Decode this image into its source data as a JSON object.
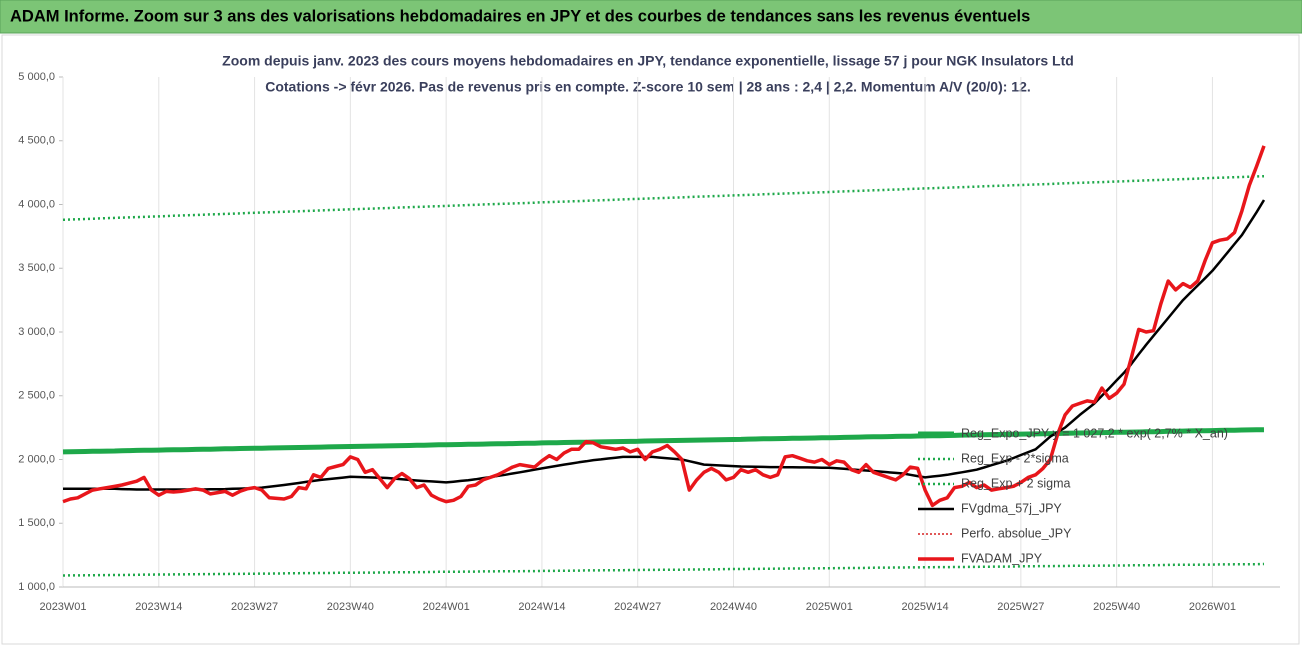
{
  "header": {
    "title": "ADAM Informe. Zoom sur 3 ans des valorisations hebdomadaires en JPY et des courbes de tendances sans les revenus éventuels"
  },
  "chart_data": {
    "type": "line",
    "title": "Zoom depuis janv. 2023 des cours moyens hebdomadaires en JPY, tendance exponentielle, lissage 57 j pour NGK Insulators Ltd",
    "subtitle": "Cotations -> févr 2026. Pas de revenus pris en compte. Z-score 10 sem | 28 ans : 2,4 | 2,2. Momentum A/V (20/0): 12.",
    "categories": [
      "2023W01",
      null,
      null,
      null,
      null,
      null,
      null,
      null,
      null,
      null,
      null,
      null,
      null,
      "2023W14",
      null,
      null,
      null,
      null,
      null,
      null,
      null,
      null,
      null,
      null,
      null,
      null,
      "2023W27",
      null,
      null,
      null,
      null,
      null,
      null,
      null,
      null,
      null,
      null,
      null,
      null,
      "2023W40",
      null,
      null,
      null,
      null,
      null,
      null,
      null,
      null,
      null,
      null,
      null,
      null,
      "2024W01",
      null,
      null,
      null,
      null,
      null,
      null,
      null,
      null,
      null,
      null,
      null,
      null,
      "2024W14",
      null,
      null,
      null,
      null,
      null,
      null,
      null,
      null,
      null,
      null,
      null,
      null,
      "2024W27",
      null,
      null,
      null,
      null,
      null,
      null,
      null,
      null,
      null,
      null,
      null,
      null,
      "2024W40",
      null,
      null,
      null,
      null,
      null,
      null,
      null,
      null,
      null,
      null,
      null,
      null,
      "2025W01",
      null,
      null,
      null,
      null,
      null,
      null,
      null,
      null,
      null,
      null,
      null,
      null,
      "2025W14",
      null,
      null,
      null,
      null,
      null,
      null,
      null,
      null,
      null,
      null,
      null,
      null,
      "2025W27",
      null,
      null,
      null,
      null,
      null,
      null,
      null,
      null,
      null,
      null,
      null,
      null,
      "2025W40",
      null,
      null,
      null,
      null,
      null,
      null,
      null,
      null,
      null,
      null,
      null,
      null,
      "2026W01",
      null,
      null,
      null,
      null,
      null,
      null,
      null
    ],
    "ylim": [
      1000,
      5000
    ],
    "yticks": [
      {
        "value": 1000,
        "label": "1 000,0"
      },
      {
        "value": 1500,
        "label": "1 500,0"
      },
      {
        "value": 2000,
        "label": "2 000,0"
      },
      {
        "value": 2500,
        "label": "2 500,0"
      },
      {
        "value": 3000,
        "label": "3 000,0"
      },
      {
        "value": 3500,
        "label": "3 500,0"
      },
      {
        "value": 4000,
        "label": "4 000,0"
      },
      {
        "value": 4500,
        "label": "4 500,0"
      },
      {
        "value": 5000,
        "label": "5 000,0"
      }
    ],
    "grid": "x",
    "legend": "lower right",
    "series": [
      {
        "name": "Reg_Expo_JPY  y = 1 027,2 * exp( 2,7% * X_an)",
        "color": "#1ea84a",
        "width": 5,
        "style": "solid",
        "values": [
          2060,
          2061,
          2062,
          2063,
          2064,
          2065,
          2066,
          2067,
          2069,
          2070,
          2071,
          2072,
          2073,
          2074,
          2075,
          2076,
          2077,
          2078,
          2079,
          2080,
          2081,
          2082,
          2084,
          2085,
          2086,
          2087,
          2088,
          2089,
          2090,
          2091,
          2092,
          2093,
          2094,
          2095,
          2096,
          2097,
          2099,
          2100,
          2101,
          2102,
          2103,
          2104,
          2105,
          2106,
          2107,
          2108,
          2109,
          2110,
          2111,
          2112,
          2114,
          2115,
          2116,
          2117,
          2118,
          2119,
          2120,
          2121,
          2122,
          2123,
          2124,
          2125,
          2126,
          2127,
          2128,
          2130,
          2131,
          2132,
          2133,
          2134,
          2135,
          2136,
          2137,
          2138,
          2139,
          2140,
          2141,
          2142,
          2143,
          2145,
          2146,
          2147,
          2148,
          2149,
          2150,
          2151,
          2152,
          2153,
          2154,
          2155,
          2156,
          2157,
          2158,
          2160,
          2161,
          2162,
          2163,
          2164,
          2165,
          2166,
          2167,
          2168,
          2169,
          2170,
          2171,
          2172,
          2173,
          2174,
          2176,
          2177,
          2178,
          2179,
          2180,
          2181,
          2182,
          2183,
          2184,
          2185,
          2186,
          2187,
          2188,
          2189,
          2191,
          2192,
          2193,
          2194,
          2195,
          2196,
          2197,
          2198,
          2199,
          2200,
          2201,
          2202,
          2203,
          2204,
          2206,
          2207,
          2208,
          2209,
          2210,
          2211,
          2212,
          2213,
          2214,
          2215,
          2216,
          2217,
          2218,
          2219,
          2221,
          2222,
          2223,
          2224,
          2225,
          2226,
          2227,
          2228,
          2229,
          2230,
          2231,
          2232,
          2233,
          2234
        ]
      },
      {
        "name": "Reg_Exp - 2*sigma",
        "color": "#1ea84a",
        "width": 2.5,
        "style": "dotted",
        "values": [
          1090,
          1091,
          1091,
          1092,
          1092,
          1093,
          1093,
          1094,
          1094,
          1095,
          1096,
          1097,
          1097,
          1098,
          1098,
          1099,
          1099,
          1100,
          1100,
          1101,
          1101,
          1102,
          1102,
          1103,
          1103,
          1104,
          1104,
          1105,
          1105,
          1106,
          1107,
          1108,
          1108,
          1109,
          1109,
          1110,
          1110,
          1111,
          1111,
          1112,
          1112,
          1113,
          1113,
          1114,
          1114,
          1115,
          1115,
          1116,
          1116,
          1117,
          1118,
          1119,
          1119,
          1120,
          1120,
          1121,
          1121,
          1122,
          1122,
          1123,
          1123,
          1124,
          1124,
          1125,
          1125,
          1126,
          1126,
          1127,
          1127,
          1128,
          1129,
          1130,
          1130,
          1131,
          1131,
          1132,
          1132,
          1133,
          1133,
          1134,
          1134,
          1135,
          1135,
          1136,
          1136,
          1137,
          1137,
          1138,
          1138,
          1139,
          1140,
          1141,
          1141,
          1142,
          1142,
          1143,
          1143,
          1144,
          1144,
          1145,
          1145,
          1146,
          1146,
          1147,
          1147,
          1148,
          1148,
          1149,
          1149,
          1150,
          1151,
          1152,
          1152,
          1153,
          1153,
          1154,
          1154,
          1155,
          1155,
          1156,
          1156,
          1157,
          1157,
          1158,
          1158,
          1159,
          1159,
          1160,
          1160,
          1161,
          1162,
          1163,
          1163,
          1164,
          1164,
          1165,
          1165,
          1166,
          1166,
          1167,
          1167,
          1168,
          1168,
          1169,
          1169,
          1170,
          1170,
          1171,
          1171,
          1172,
          1173,
          1174,
          1174,
          1175,
          1175,
          1176,
          1176,
          1177,
          1177,
          1178,
          1178,
          1179,
          1179,
          1180
        ]
      },
      {
        "name": "Reg_Exp + 2 sigma",
        "color": "#1ea84a",
        "width": 2.5,
        "style": "dotted",
        "values": [
          3880,
          3882,
          3884,
          3886,
          3888,
          3891,
          3893,
          3895,
          3897,
          3899,
          3901,
          3903,
          3905,
          3907,
          3909,
          3912,
          3914,
          3916,
          3918,
          3920,
          3922,
          3924,
          3926,
          3928,
          3930,
          3933,
          3935,
          3937,
          3939,
          3941,
          3943,
          3945,
          3947,
          3949,
          3951,
          3954,
          3956,
          3958,
          3960,
          3962,
          3964,
          3966,
          3968,
          3970,
          3972,
          3975,
          3977,
          3979,
          3981,
          3983,
          3985,
          3987,
          3989,
          3991,
          3993,
          3996,
          3998,
          4000,
          4002,
          4004,
          4006,
          4008,
          4010,
          4012,
          4014,
          4017,
          4019,
          4021,
          4023,
          4025,
          4027,
          4029,
          4031,
          4033,
          4035,
          4038,
          4040,
          4042,
          4044,
          4046,
          4048,
          4050,
          4052,
          4054,
          4056,
          4059,
          4061,
          4063,
          4065,
          4067,
          4069,
          4071,
          4073,
          4075,
          4077,
          4080,
          4082,
          4084,
          4086,
          4088,
          4090,
          4092,
          4094,
          4096,
          4098,
          4101,
          4103,
          4105,
          4107,
          4109,
          4111,
          4113,
          4115,
          4117,
          4119,
          4122,
          4124,
          4126,
          4128,
          4130,
          4132,
          4134,
          4136,
          4138,
          4140,
          4143,
          4145,
          4147,
          4149,
          4151,
          4153,
          4155,
          4157,
          4159,
          4161,
          4164,
          4166,
          4168,
          4170,
          4172,
          4174,
          4176,
          4178,
          4180,
          4182,
          4185,
          4187,
          4189,
          4191,
          4193,
          4195,
          4197,
          4199,
          4201,
          4203,
          4206,
          4208,
          4210,
          4212,
          4214,
          4216,
          4218,
          4220,
          4222
        ]
      },
      {
        "name": "FVgdma_57j_JPY",
        "color": "#000000",
        "width": 2.5,
        "style": "solid",
        "values": [
          1770,
          1770,
          1770,
          1770,
          1770,
          1770,
          1770,
          1770,
          1768,
          1766,
          1765,
          1765,
          1765,
          1765,
          1765,
          1765,
          1765,
          1765,
          1765,
          1765,
          1766,
          1767,
          1768,
          1770,
          1772,
          1773,
          1775,
          1780,
          1787,
          1793,
          1800,
          1808,
          1816,
          1824,
          1832,
          1840,
          1846,
          1852,
          1858,
          1865,
          1863,
          1861,
          1859,
          1857,
          1855,
          1850,
          1845,
          1840,
          1835,
          1831,
          1828,
          1824,
          1820,
          1826,
          1832,
          1838,
          1845,
          1854,
          1862,
          1871,
          1880,
          1890,
          1900,
          1910,
          1920,
          1930,
          1940,
          1950,
          1960,
          1969,
          1978,
          1986,
          1995,
          2001,
          2008,
          2014,
          2020,
          2020,
          2020,
          2020,
          2020,
          2015,
          2010,
          2005,
          2000,
          1987,
          1973,
          1960,
          1957,
          1954,
          1951,
          1948,
          1945,
          1944,
          1943,
          1942,
          1940,
          1940,
          1939,
          1939,
          1938,
          1938,
          1937,
          1936,
          1935,
          1931,
          1927,
          1922,
          1918,
          1914,
          1910,
          1905,
          1900,
          1895,
          1890,
          1880,
          1870,
          1860,
          1867,
          1873,
          1880,
          1890,
          1900,
          1910,
          1920,
          1937,
          1955,
          1972,
          1990,
          2012,
          2035,
          2058,
          2080,
          2130,
          2180,
          2215,
          2250,
          2300,
          2350,
          2395,
          2440,
          2500,
          2560,
          2620,
          2680,
          2750,
          2825,
          2900,
          2970,
          3040,
          3110,
          3180,
          3250,
          3308,
          3365,
          3422,
          3480,
          3550,
          3620,
          3690,
          3760,
          3850,
          3940,
          4035
        ]
      },
      {
        "name": "Perfo. absolue_JPY",
        "color": "#d62020",
        "width": 1.5,
        "style": "dotted",
        "values": [
          1670,
          1690,
          1700,
          1730,
          1760,
          1770,
          1780,
          1790,
          1800,
          1815,
          1830,
          1860,
          1760,
          1720,
          1750,
          1745,
          1750,
          1760,
          1770,
          1760,
          1730,
          1740,
          1750,
          1720,
          1750,
          1770,
          1780,
          1760,
          1700,
          1695,
          1690,
          1710,
          1780,
          1770,
          1880,
          1860,
          1930,
          1945,
          1960,
          2020,
          2000,
          1900,
          1920,
          1850,
          1780,
          1850,
          1890,
          1850,
          1780,
          1800,
          1720,
          1690,
          1670,
          1680,
          1710,
          1790,
          1800,
          1840,
          1860,
          1880,
          1910,
          1940,
          1960,
          1950,
          1940,
          1990,
          2030,
          2000,
          2050,
          2080,
          2080,
          2140,
          2130,
          2100,
          2090,
          2080,
          2090,
          2060,
          2080,
          2000,
          2060,
          2080,
          2110,
          2060,
          2000,
          1760,
          1840,
          1900,
          1930,
          1900,
          1840,
          1860,
          1920,
          1900,
          1920,
          1880,
          1860,
          1880,
          2020,
          2030,
          2010,
          1990,
          1980,
          2000,
          1960,
          1990,
          1980,
          1920,
          1900,
          1960,
          1900,
          1880,
          1860,
          1840,
          1880,
          1940,
          1930,
          1760,
          1640,
          1680,
          1700,
          1780,
          1790,
          1820,
          1780,
          1800,
          1760,
          1770,
          1780,
          1790,
          1820,
          1860,
          1880,
          1930,
          2000,
          2200,
          2350,
          2420,
          2440,
          2460,
          2450,
          2560,
          2480,
          2520,
          2590,
          2800,
          3020,
          3000,
          3010,
          3220,
          3400,
          3330,
          3380,
          3350,
          3400,
          3560,
          3700,
          3720,
          3730,
          3780,
          3950,
          4150,
          4300,
          4460
        ]
      },
      {
        "name": "FVADAM_JPY",
        "color": "#e8161b",
        "width": 3.5,
        "style": "solid",
        "values": [
          1670,
          1690,
          1700,
          1730,
          1760,
          1770,
          1780,
          1790,
          1800,
          1815,
          1830,
          1860,
          1760,
          1720,
          1750,
          1745,
          1750,
          1760,
          1770,
          1760,
          1730,
          1740,
          1750,
          1720,
          1750,
          1770,
          1780,
          1760,
          1700,
          1695,
          1690,
          1710,
          1780,
          1770,
          1880,
          1860,
          1930,
          1945,
          1960,
          2020,
          2000,
          1900,
          1920,
          1850,
          1780,
          1850,
          1890,
          1850,
          1780,
          1800,
          1720,
          1690,
          1670,
          1680,
          1710,
          1790,
          1800,
          1840,
          1860,
          1880,
          1910,
          1940,
          1960,
          1950,
          1940,
          1990,
          2030,
          2000,
          2050,
          2080,
          2080,
          2140,
          2130,
          2100,
          2090,
          2080,
          2090,
          2060,
          2080,
          2000,
          2060,
          2080,
          2110,
          2060,
          2000,
          1760,
          1840,
          1900,
          1930,
          1900,
          1840,
          1860,
          1920,
          1900,
          1920,
          1880,
          1860,
          1880,
          2020,
          2030,
          2010,
          1990,
          1980,
          2000,
          1960,
          1990,
          1980,
          1920,
          1900,
          1960,
          1900,
          1880,
          1860,
          1840,
          1880,
          1940,
          1930,
          1760,
          1640,
          1680,
          1700,
          1780,
          1790,
          1820,
          1780,
          1800,
          1760,
          1770,
          1780,
          1790,
          1820,
          1860,
          1880,
          1930,
          2000,
          2200,
          2350,
          2420,
          2440,
          2460,
          2450,
          2560,
          2480,
          2520,
          2590,
          2800,
          3020,
          3000,
          3010,
          3220,
          3400,
          3330,
          3380,
          3350,
          3400,
          3560,
          3700,
          3720,
          3730,
          3780,
          3950,
          4150,
          4300,
          4460
        ]
      }
    ]
  }
}
